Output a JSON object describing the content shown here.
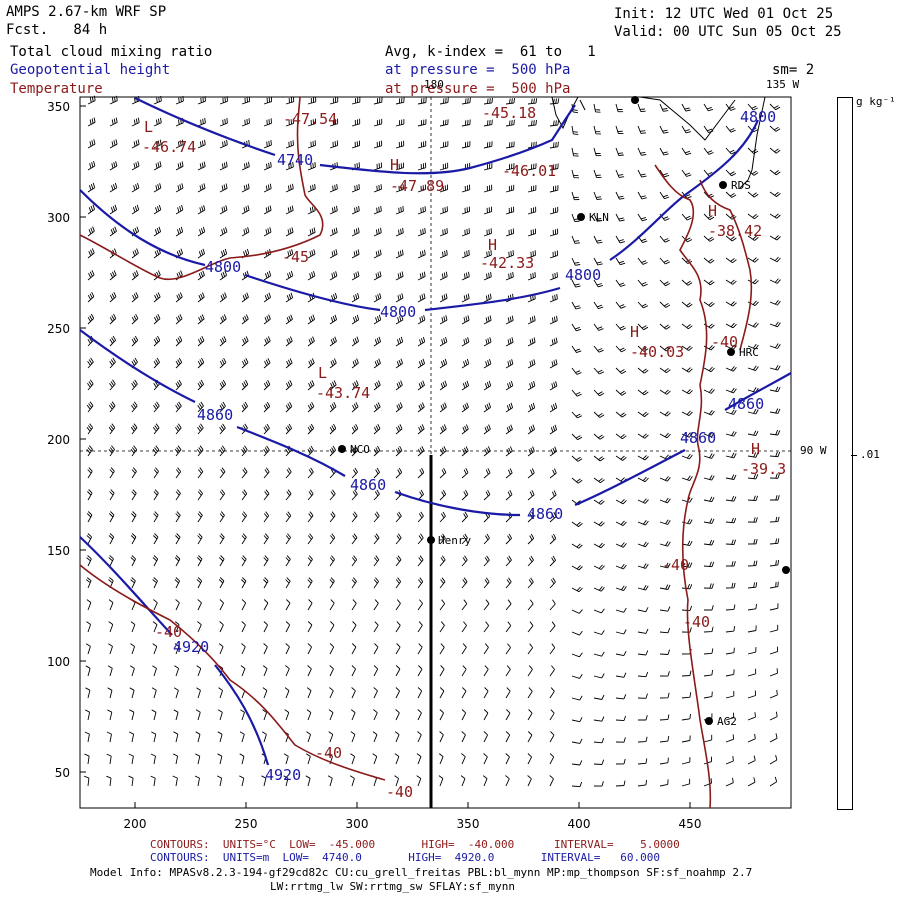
{
  "header": {
    "model": "AMPS 2.67-km WRF SP",
    "forecast": "Fcst.   84 h",
    "init": "Init: 12 UTC Wed 01 Oct 25",
    "valid": "Valid: 00 UTC Sun 05 Oct 25",
    "field1": "Total cloud mixing ratio",
    "field2": "Geopotential height",
    "field3": "Temperature",
    "avg": "Avg, k-index =  61 to   1",
    "pressure1": "at pressure =  500 hPa",
    "pressure2": "at pressure =  500 hPa",
    "sm": "sm= 2",
    "lon_label": "135 W",
    "lon_180": "180",
    "lon_90w": "90 W"
  },
  "colorbar": {
    "units": "g kg⁻¹",
    "tick": ".01"
  },
  "axes": {
    "y_ticks": [
      "350",
      "300",
      "250",
      "200",
      "150",
      "100",
      "50"
    ],
    "x_ticks": [
      "200",
      "250",
      "300",
      "350",
      "400",
      "450"
    ]
  },
  "stations": {
    "kln": "KLN",
    "rds": "RDS",
    "hrc": "HRC",
    "nco": "NCO",
    "henry": "Henry",
    "ag2": "AG2"
  },
  "height_labels": {
    "h4740": "4740",
    "h4800a": "4800",
    "h4800b": "4800",
    "h4800c": "4800",
    "h4800d": "4800",
    "h4860a": "4860",
    "h4860b": "4860",
    "h4860c": "4860",
    "h4860d": "4860",
    "h4860e": "4860",
    "h4920a": "4920",
    "h4920b": "4920"
  },
  "temp_labels": {
    "t1": "-47.54",
    "t2": "-45.18",
    "t3": "-46.74",
    "t4": "-47.89",
    "t5": "-46.01",
    "t6": "-45",
    "t7": "-42.33",
    "t8": "-38.42",
    "t9": "-40.03",
    "t10": "-40",
    "t11": "-43.74",
    "t12": "-39.3",
    "t13": "-40",
    "t14": "-40",
    "t15": "-40",
    "t16": "-40",
    "t17": "-40"
  },
  "extrema": {
    "L1": "L",
    "L2": "L",
    "H1": "H",
    "H2": "H",
    "H3": "H",
    "H4": "H",
    "H5": "H"
  },
  "footer": {
    "line1_red": "CONTOURS:  UNITS=°C  LOW=  -45.000       HIGH=  -40.000      INTERVAL=    5.0000",
    "line2_blue": "CONTOURS:  UNITS=m  LOW=  4740.0       HIGH=  4920.0       INTERVAL=   60.000",
    "line3": "Model Info: MPASv8.2.3-194-gf29cd82c CU:cu_grell_freitas PBL:bl_mynn MP:mp_thompson SF:sf_noahmp 2.7",
    "line4": "LW:rrtmg_lw SW:rrtmg_sw SFLAY:sf_mynn"
  },
  "colors": {
    "height_contour": "#1a1aa6",
    "temp_contour": "#8b1a1a",
    "coast": "#000000"
  }
}
